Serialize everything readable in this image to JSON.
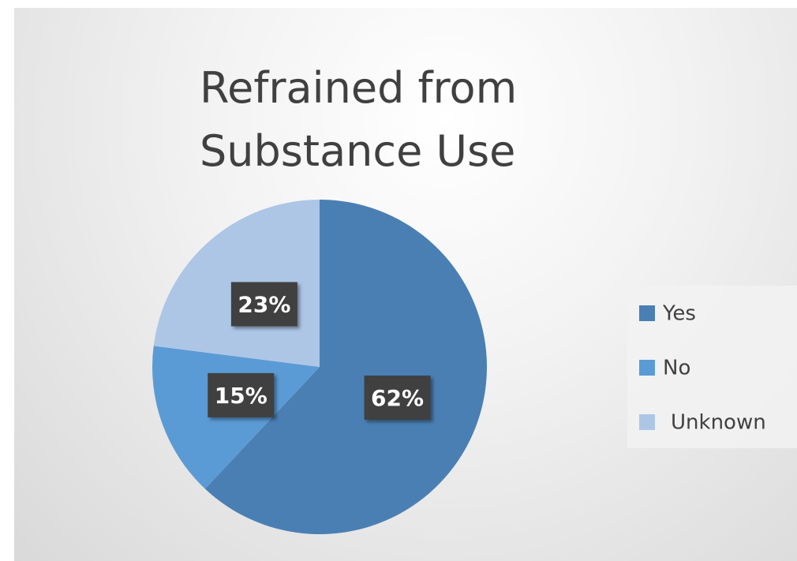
{
  "chart_data": {
    "type": "pie",
    "title": "Refrained from Substance Use",
    "categories": [
      "Yes",
      "No",
      "Unknown"
    ],
    "values": [
      62,
      15,
      23
    ],
    "value_labels": [
      "62%",
      "15%",
      "23%"
    ],
    "colors": [
      "#4a7fb4",
      "#5b9bd5",
      "#adc6e6"
    ],
    "legend": "right"
  }
}
